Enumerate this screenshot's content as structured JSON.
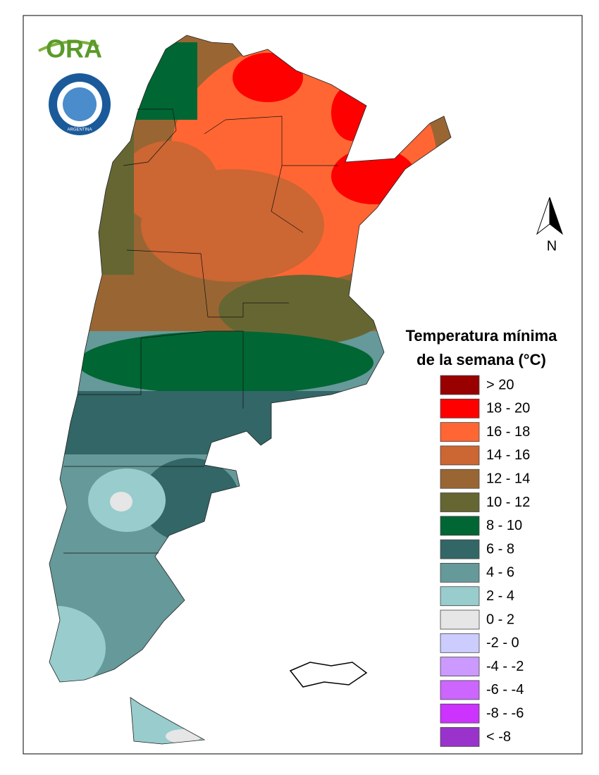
{
  "logo": {
    "name": "ORA",
    "seal": "ARGENTINA"
  },
  "north": "N",
  "legend": {
    "title": [
      "Temperatura mínima",
      "de la semana (°C)"
    ],
    "items": [
      {
        "label": "> 20",
        "color": "#990000"
      },
      {
        "label": "18 - 20",
        "color": "#ff0000"
      },
      {
        "label": "16 - 18",
        "color": "#ff6633"
      },
      {
        "label": "14 - 16",
        "color": "#cc6633"
      },
      {
        "label": "12 - 14",
        "color": "#996633"
      },
      {
        "label": "10 - 12",
        "color": "#666633"
      },
      {
        "label": "8 - 10",
        "color": "#006633"
      },
      {
        "label": "6 - 8",
        "color": "#336666"
      },
      {
        "label": "4 - 6",
        "color": "#669999"
      },
      {
        "label": "2 - 4",
        "color": "#99cccc"
      },
      {
        "label": "0 - 2",
        "color": "#e6e6e6"
      },
      {
        "label": "-2 - 0",
        "color": "#ccccff"
      },
      {
        "label": "-4 - -2",
        "color": "#cc99ff"
      },
      {
        "label": "-6 - -4",
        "color": "#cc66ff"
      },
      {
        "label": "-8 - -6",
        "color": "#cc33ff"
      },
      {
        "label": "< -8",
        "color": "#9933cc"
      }
    ]
  }
}
